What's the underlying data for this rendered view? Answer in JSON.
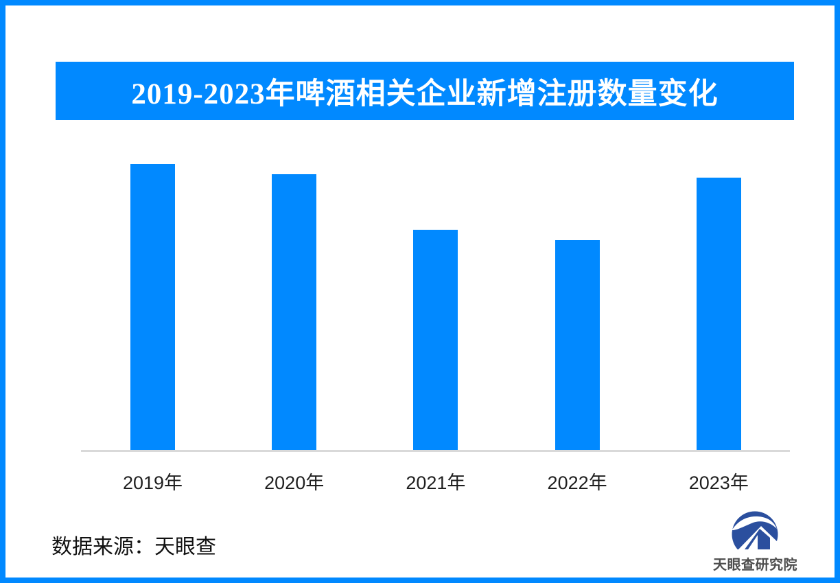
{
  "title": "2019-2023年啤酒相关企业新增注册数量变化",
  "source_note": {
    "label": "数据来源：天眼查"
  },
  "footer_logo": {
    "brand_text": "天眼查研究院"
  },
  "colors": {
    "accent_blue": "#0189FF",
    "logo_navy": "#2B4F9E",
    "axis_gray": "#D9D9D9",
    "title_text": "#FFFFFF",
    "label_text": "#1F1F1F",
    "brand_text_color": "#4D4D4D"
  },
  "chart_data": {
    "type": "bar",
    "title": "2019-2023年啤酒相关企业新增注册数量变化",
    "categories": [
      "2019年",
      "2020年",
      "2021年",
      "2022年",
      "2023年"
    ],
    "values": [
      100,
      96.4,
      77,
      73.4,
      95.2
    ],
    "value_note": "图中无纵轴刻度或数值标签；values 为按条形像素高度归一化的相对值（2019年 = 100）",
    "xlabel": "",
    "ylabel": "",
    "ylim": [
      0,
      108
    ],
    "grid": false,
    "legend": false,
    "bar_color": "#0189FF",
    "baseline_color": "#D9D9D9"
  }
}
